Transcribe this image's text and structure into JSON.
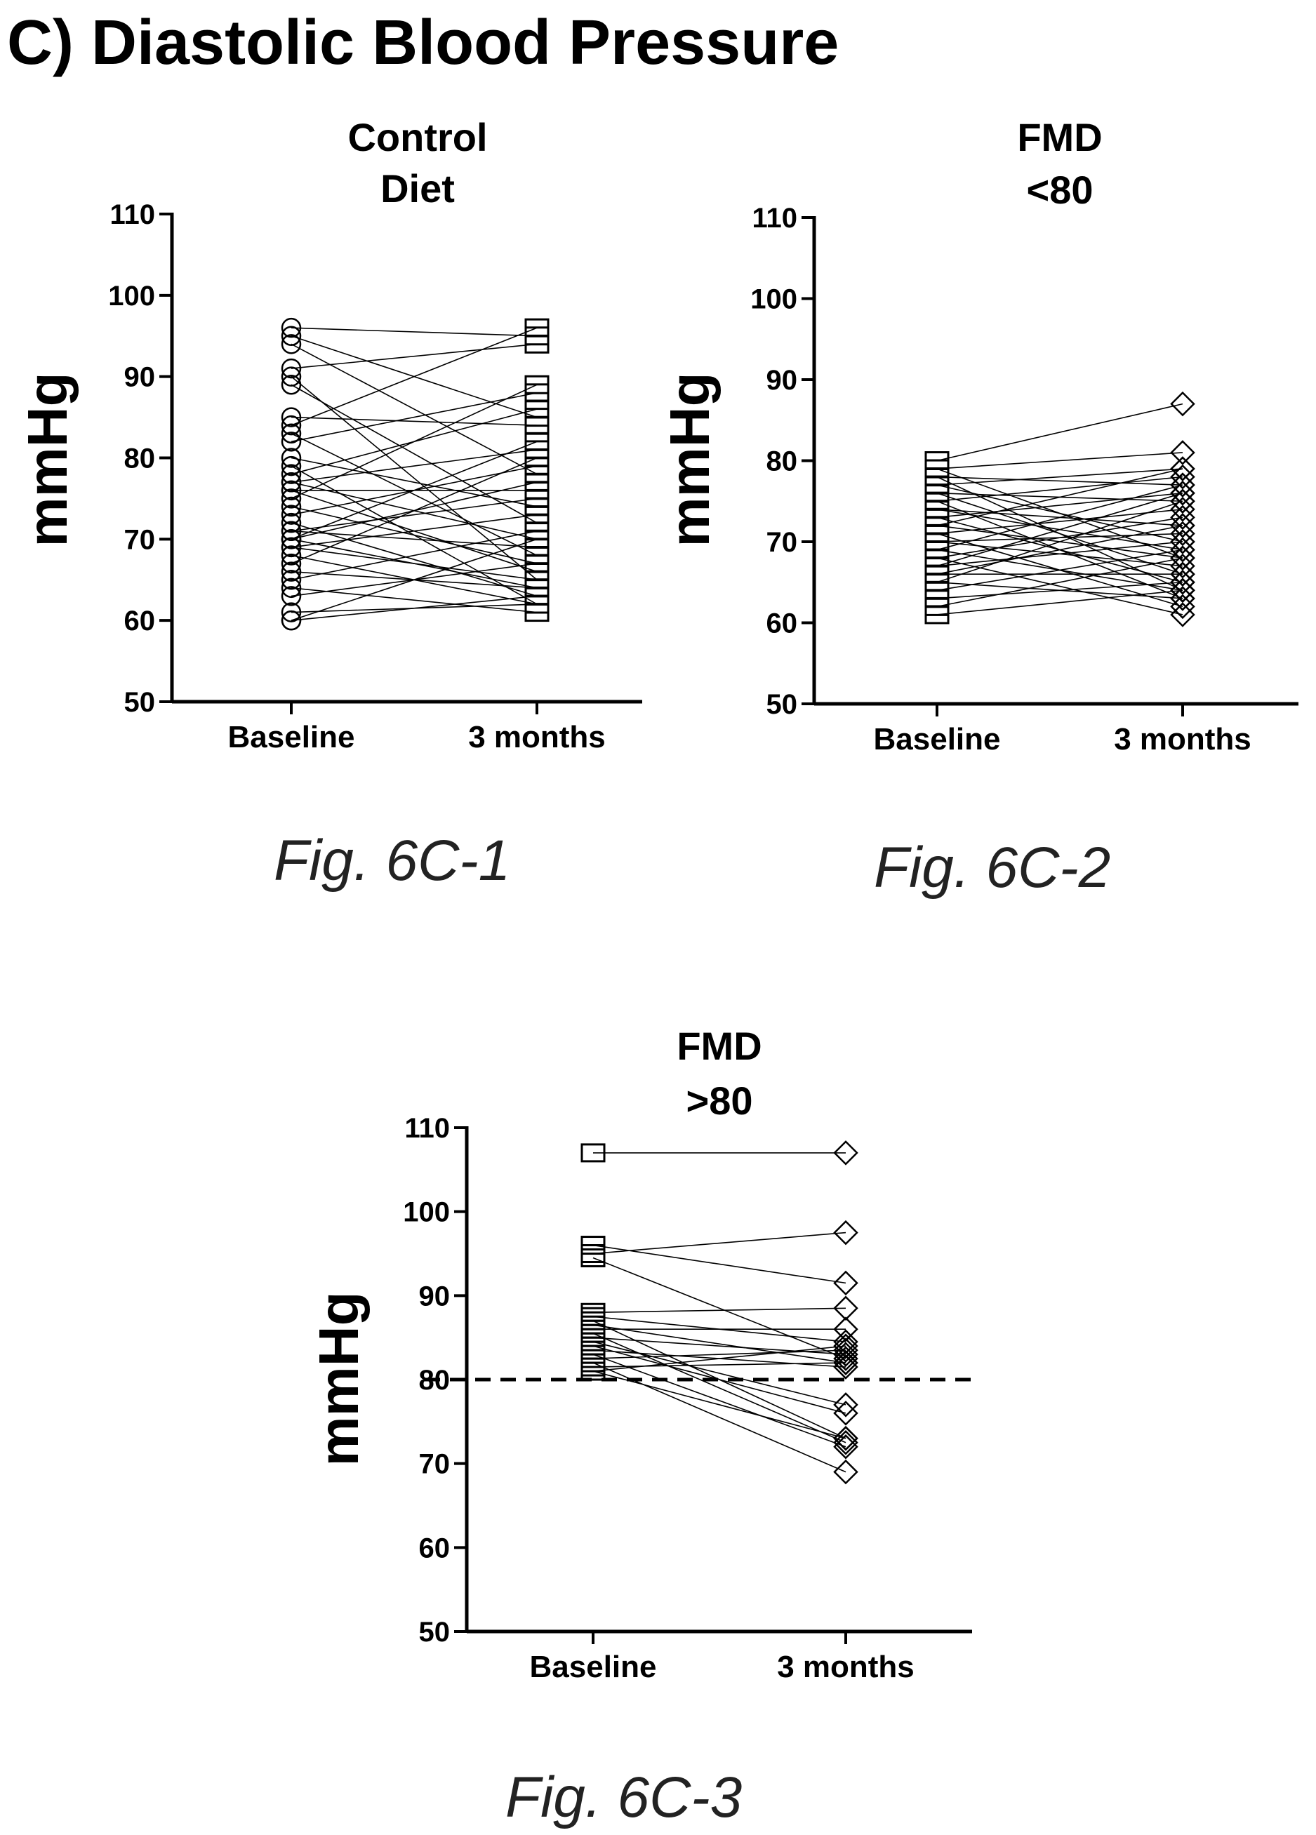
{
  "page_title": "C) Diastolic Blood Pressure",
  "chart_data": [
    {
      "id": "fig-6c-1",
      "type": "line",
      "caption": "Fig. 6C-1",
      "title_lines": [
        "Control",
        "Diet"
      ],
      "ylabel": "mmHg",
      "categories": [
        "Baseline",
        "3 months"
      ],
      "ylim": [
        50,
        110
      ],
      "yticks": [
        50,
        60,
        70,
        80,
        90,
        100,
        110
      ],
      "marker_start": "circle",
      "marker_end": "square",
      "reference_line": null,
      "series": [
        {
          "values": [
            96,
            95
          ]
        },
        {
          "values": [
            95,
            85
          ]
        },
        {
          "values": [
            94,
            78
          ]
        },
        {
          "values": [
            91,
            94
          ]
        },
        {
          "values": [
            90,
            65
          ]
        },
        {
          "values": [
            89,
            72
          ]
        },
        {
          "values": [
            85,
            84
          ]
        },
        {
          "values": [
            84,
            96
          ]
        },
        {
          "values": [
            83,
            68
          ]
        },
        {
          "values": [
            82,
            88
          ]
        },
        {
          "values": [
            80,
            74
          ]
        },
        {
          "values": [
            79,
            62
          ]
        },
        {
          "values": [
            78,
            86
          ]
        },
        {
          "values": [
            77,
            70
          ]
        },
        {
          "values": [
            77,
            81
          ]
        },
        {
          "values": [
            76,
            76
          ]
        },
        {
          "values": [
            76,
            66
          ]
        },
        {
          "values": [
            75,
            89
          ]
        },
        {
          "values": [
            74,
            67
          ]
        },
        {
          "values": [
            73,
            79
          ]
        },
        {
          "values": [
            72,
            63
          ]
        },
        {
          "values": [
            71,
            75
          ]
        },
        {
          "values": [
            71,
            69
          ]
        },
        {
          "values": [
            70,
            82
          ]
        },
        {
          "values": [
            70,
            64
          ]
        },
        {
          "values": [
            70,
            77
          ]
        },
        {
          "values": [
            69,
            65
          ]
        },
        {
          "values": [
            69,
            73
          ]
        },
        {
          "values": [
            68,
            62
          ]
        },
        {
          "values": [
            67,
            80
          ]
        },
        {
          "values": [
            66,
            64
          ]
        },
        {
          "values": [
            65,
            71
          ]
        },
        {
          "values": [
            64,
            61
          ]
        },
        {
          "values": [
            63,
            67
          ]
        },
        {
          "values": [
            61,
            62
          ]
        },
        {
          "values": [
            60,
            70
          ]
        },
        {
          "values": [
            60,
            63
          ]
        }
      ]
    },
    {
      "id": "fig-6c-2",
      "type": "line",
      "caption": "Fig. 6C-2",
      "title_lines": [
        "FMD",
        "<80"
      ],
      "ylabel": "mmHg",
      "categories": [
        "Baseline",
        "3 months"
      ],
      "ylim": [
        50,
        110
      ],
      "yticks": [
        50,
        60,
        70,
        80,
        90,
        100,
        110
      ],
      "marker_start": "square",
      "marker_end": "diamond",
      "reference_line": null,
      "series": [
        {
          "values": [
            80,
            87
          ]
        },
        {
          "values": [
            79,
            81
          ]
        },
        {
          "values": [
            79,
            68
          ]
        },
        {
          "values": [
            78,
            77
          ]
        },
        {
          "values": [
            78,
            64
          ]
        },
        {
          "values": [
            77,
            79
          ]
        },
        {
          "values": [
            77,
            70
          ]
        },
        {
          "values": [
            76,
            75
          ]
        },
        {
          "values": [
            76,
            66
          ]
        },
        {
          "values": [
            75,
            78
          ]
        },
        {
          "values": [
            75,
            63
          ]
        },
        {
          "values": [
            74,
            72
          ]
        },
        {
          "values": [
            74,
            69
          ]
        },
        {
          "values": [
            73,
            76
          ]
        },
        {
          "values": [
            73,
            65
          ]
        },
        {
          "values": [
            72,
            79
          ]
        },
        {
          "values": [
            72,
            68
          ]
        },
        {
          "values": [
            71,
            74
          ]
        },
        {
          "values": [
            71,
            62
          ]
        },
        {
          "values": [
            70,
            71
          ]
        },
        {
          "values": [
            70,
            67
          ]
        },
        {
          "values": [
            69,
            77
          ]
        },
        {
          "values": [
            69,
            64
          ]
        },
        {
          "values": [
            68,
            73
          ]
        },
        {
          "values": [
            68,
            61
          ]
        },
        {
          "values": [
            67,
            70
          ]
        },
        {
          "values": [
            67,
            76
          ]
        },
        {
          "values": [
            66,
            66
          ]
        },
        {
          "values": [
            66,
            72
          ]
        },
        {
          "values": [
            65,
            63
          ]
        },
        {
          "values": [
            65,
            75
          ]
        },
        {
          "values": [
            64,
            69
          ]
        },
        {
          "values": [
            63,
            65
          ]
        },
        {
          "values": [
            62,
            68
          ]
        },
        {
          "values": [
            61,
            64
          ]
        }
      ]
    },
    {
      "id": "fig-6c-3",
      "type": "line",
      "caption": "Fig. 6C-3",
      "title_lines": [
        "FMD",
        ">80"
      ],
      "ylabel": "mmHg",
      "categories": [
        "Baseline",
        "3 months"
      ],
      "ylim": [
        50,
        110
      ],
      "yticks": [
        50,
        60,
        70,
        80,
        90,
        100,
        110
      ],
      "marker_start": "square",
      "marker_end": "diamond",
      "reference_line": 80,
      "series": [
        {
          "values": [
            107,
            107
          ]
        },
        {
          "values": [
            96,
            91.5
          ]
        },
        {
          "values": [
            95,
            97.5
          ]
        },
        {
          "values": [
            94.5,
            82.5
          ]
        },
        {
          "values": [
            88,
            88.5
          ]
        },
        {
          "values": [
            87.5,
            84.5
          ]
        },
        {
          "values": [
            87,
            73
          ]
        },
        {
          "values": [
            86.5,
            82
          ]
        },
        {
          "values": [
            86,
            86
          ]
        },
        {
          "values": [
            85.5,
            72.5
          ]
        },
        {
          "values": [
            85,
            83
          ]
        },
        {
          "values": [
            84.5,
            77
          ]
        },
        {
          "values": [
            84,
            76
          ]
        },
        {
          "values": [
            83.5,
            81.5
          ]
        },
        {
          "values": [
            83,
            72
          ]
        },
        {
          "values": [
            82.5,
            83.5
          ]
        },
        {
          "values": [
            82,
            69
          ]
        },
        {
          "values": [
            81.5,
            82
          ]
        },
        {
          "values": [
            81,
            73
          ]
        },
        {
          "values": [
            81,
            84
          ]
        }
      ]
    }
  ]
}
